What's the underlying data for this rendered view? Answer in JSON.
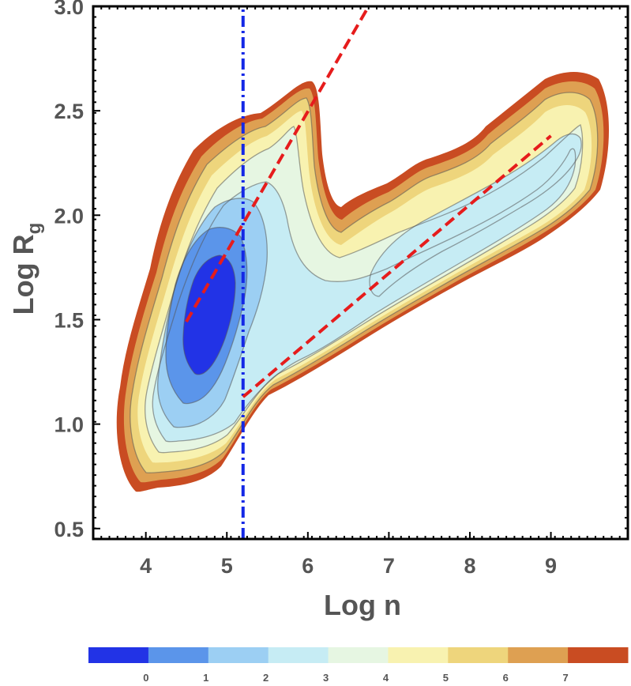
{
  "chart_data": {
    "type": "contour",
    "xlabel": "Log n",
    "ylabel_main": "Log R",
    "ylabel_sub": "g",
    "xlim": [
      3.35,
      9.95
    ],
    "ylim": [
      0.45,
      3.0
    ],
    "xticks": [
      "4",
      "5",
      "6",
      "7",
      "8",
      "9"
    ],
    "yticks": [
      "0.5",
      "1.0",
      "1.5",
      "2.0",
      "2.5",
      "3.0"
    ],
    "colorbar": {
      "ticks": [
        "0",
        "1",
        "2",
        "3",
        "4",
        "5",
        "6",
        "7"
      ],
      "colors": [
        "#2233e6",
        "#5b95ea",
        "#9ccff3",
        "#c6ecf4",
        "#e6f6e2",
        "#f8f2b0",
        "#eed57c",
        "#dea052",
        "#c94c22"
      ]
    },
    "blobs": [
      {
        "name": "outer-branch",
        "level": 7,
        "center": [
          6.6,
          1.7
        ],
        "radii": [
          3.2,
          0.9
        ],
        "angle": 0
      },
      {
        "name": "low-n-peak",
        "level": 0,
        "center": [
          4.6,
          1.55
        ],
        "radii": [
          0.35,
          0.25
        ],
        "angle": 0
      },
      {
        "name": "high-n-ridge",
        "level": 3,
        "center": [
          8.1,
          1.95
        ],
        "radii": [
          1.3,
          0.2
        ],
        "angle": 0
      }
    ],
    "lines": [
      {
        "name": "vertical-cutoff-line",
        "color": "#1428e6",
        "style": "dash-dot",
        "points": [
          [
            5.2,
            0.45
          ],
          [
            5.2,
            3.0
          ]
        ]
      },
      {
        "name": "steep-fit-line",
        "color": "#e61c1c",
        "style": "dashed",
        "points": [
          [
            4.5,
            1.49
          ],
          [
            6.75,
            3.0
          ]
        ]
      },
      {
        "name": "shallow-fit-line",
        "color": "#e61c1c",
        "style": "dashed",
        "points": [
          [
            5.2,
            1.13
          ],
          [
            9.0,
            2.38
          ]
        ]
      }
    ]
  }
}
